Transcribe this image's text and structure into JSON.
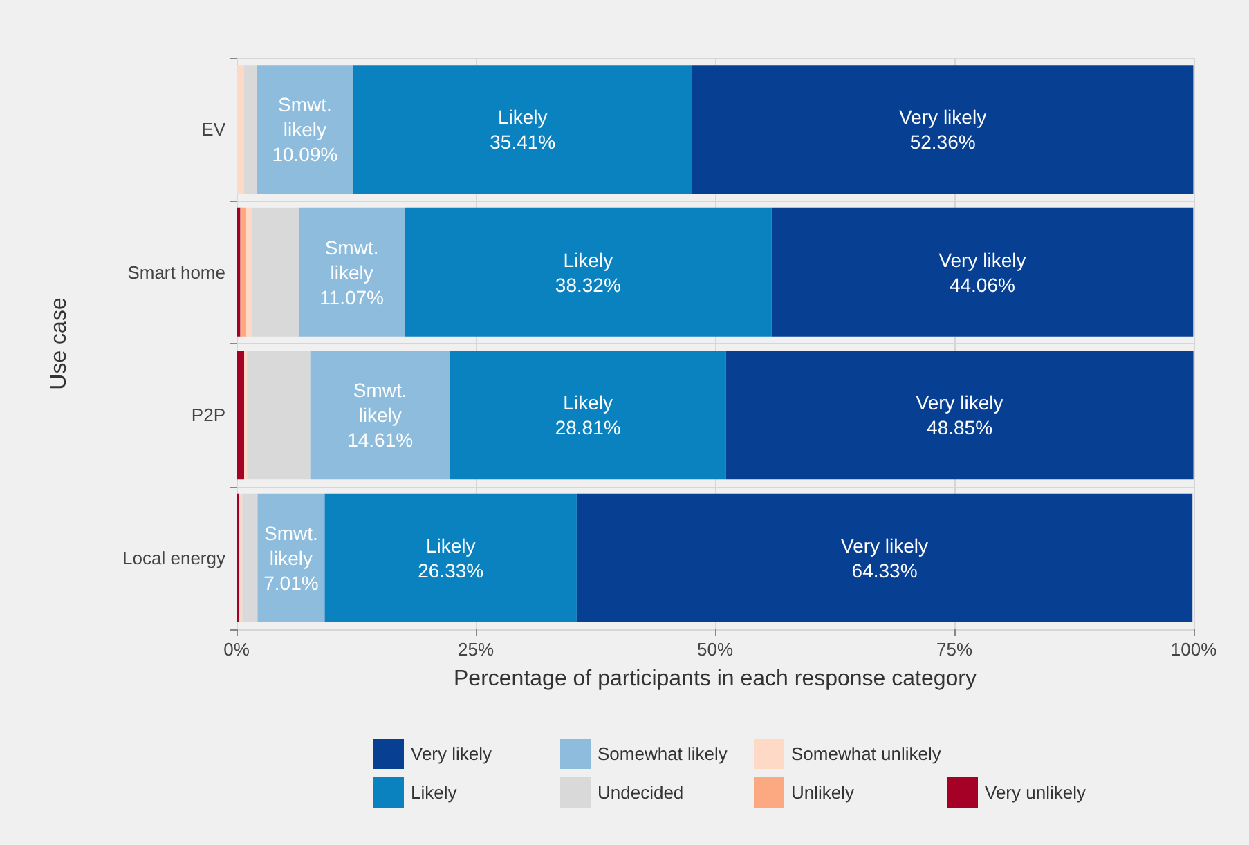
{
  "chart_data": {
    "type": "bar",
    "orientation": "horizontal",
    "stacked": true,
    "xlabel": "Percentage of participants in each response category",
    "ylabel": "Use case",
    "categories": [
      "EV",
      "Smart home",
      "P2P",
      "Local energy"
    ],
    "xlim": [
      0,
      100
    ],
    "xticks": [
      {
        "value": 0,
        "label": "0%"
      },
      {
        "value": 25,
        "label": "25%"
      },
      {
        "value": 50,
        "label": "50%"
      },
      {
        "value": 75,
        "label": "75%"
      },
      {
        "value": 100,
        "label": "100%"
      }
    ],
    "grid": true,
    "legend": "bottom",
    "series": [
      {
        "name": "Very unlikely",
        "color": "#a50026",
        "values": [
          0,
          0.4,
          0.8,
          0.3
        ]
      },
      {
        "name": "Unlikely",
        "color": "#fca982",
        "values": [
          0,
          0.6,
          0,
          0
        ]
      },
      {
        "name": "Somewhat unlikely",
        "color": "#fdd9c6",
        "values": [
          0.8,
          0.6,
          0.3,
          0.3
        ]
      },
      {
        "name": "Undecided",
        "color": "#d9d9d9",
        "values": [
          1.3,
          4.9,
          6.6,
          1.6
        ]
      },
      {
        "name": "Somewhat likely",
        "color": "#8ebcdc",
        "values": [
          10.09,
          11.07,
          14.61,
          7.01
        ],
        "value_labels": [
          "Smwt.\nlikely\n10.09%",
          "Smwt.\nlikely\n11.07%",
          "Smwt.\nlikely\n14.61%",
          "Smwt.\nlikely\n7.01%"
        ]
      },
      {
        "name": "Likely",
        "color": "#0a82c0",
        "values": [
          35.41,
          38.32,
          28.81,
          26.33
        ],
        "value_labels": [
          "Likely\n35.41%",
          "Likely\n38.32%",
          "Likely\n28.81%",
          "Likely\n26.33%"
        ]
      },
      {
        "name": "Very likely",
        "color": "#073f93",
        "values": [
          52.36,
          44.06,
          48.85,
          64.33
        ],
        "value_labels": [
          "Very likely\n52.36%",
          "Very likely\n44.06%",
          "Very likely\n48.85%",
          "Very likely\n64.33%"
        ]
      }
    ]
  }
}
